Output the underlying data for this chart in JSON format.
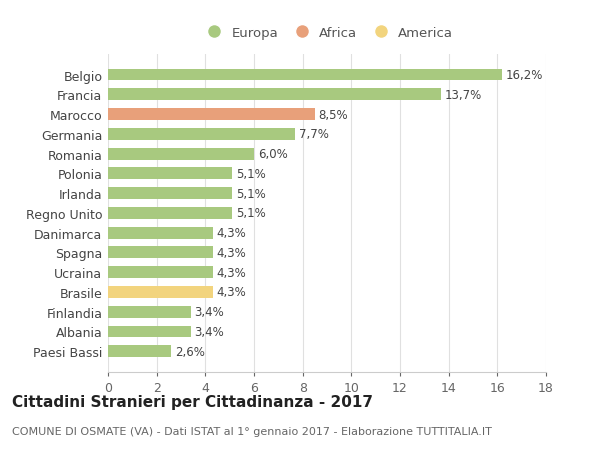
{
  "countries": [
    "Belgio",
    "Francia",
    "Marocco",
    "Germania",
    "Romania",
    "Polonia",
    "Irlanda",
    "Regno Unito",
    "Danimarca",
    "Spagna",
    "Ucraina",
    "Brasile",
    "Finlandia",
    "Albania",
    "Paesi Bassi"
  ],
  "values": [
    16.2,
    13.7,
    8.5,
    7.7,
    6.0,
    5.1,
    5.1,
    5.1,
    4.3,
    4.3,
    4.3,
    4.3,
    3.4,
    3.4,
    2.6
  ],
  "labels": [
    "16,2%",
    "13,7%",
    "8,5%",
    "7,7%",
    "6,0%",
    "5,1%",
    "5,1%",
    "5,1%",
    "4,3%",
    "4,3%",
    "4,3%",
    "4,3%",
    "3,4%",
    "3,4%",
    "2,6%"
  ],
  "continents": [
    "Europa",
    "Europa",
    "Africa",
    "Europa",
    "Europa",
    "Europa",
    "Europa",
    "Europa",
    "Europa",
    "Europa",
    "Europa",
    "America",
    "Europa",
    "Europa",
    "Europa"
  ],
  "colors": {
    "Europa": "#a8c97f",
    "Africa": "#e8a07a",
    "America": "#f2d47e"
  },
  "xlim": [
    0,
    18
  ],
  "xticks": [
    0,
    2,
    4,
    6,
    8,
    10,
    12,
    14,
    16,
    18
  ],
  "title": "Cittadini Stranieri per Cittadinanza - 2017",
  "subtitle": "COMUNE DI OSMATE (VA) - Dati ISTAT al 1° gennaio 2017 - Elaborazione TUTTITALIA.IT",
  "background_color": "#ffffff",
  "grid_color": "#e0e0e0",
  "bar_height": 0.6,
  "label_fontsize": 8.5,
  "ytick_fontsize": 9,
  "xtick_fontsize": 9,
  "title_fontsize": 11,
  "subtitle_fontsize": 8
}
